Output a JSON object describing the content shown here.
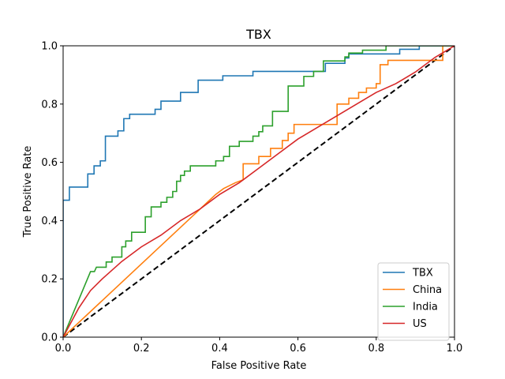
{
  "chart_data": {
    "type": "line",
    "title": "TBX",
    "xlabel": "False Positive Rate",
    "ylabel": "True Positive Rate",
    "xlim": [
      0.0,
      1.0
    ],
    "ylim": [
      0.0,
      1.0
    ],
    "xticks": [
      "0.0",
      "0.2",
      "0.4",
      "0.6",
      "0.8",
      "1.0"
    ],
    "yticks": [
      "0.0",
      "0.2",
      "0.4",
      "0.6",
      "0.8",
      "1.0"
    ],
    "grid": false,
    "legend_position": "lower-right",
    "diagonal": {
      "style": "dashed",
      "color": "#000000",
      "x": [
        0,
        1
      ],
      "y": [
        0,
        1
      ]
    },
    "series": [
      {
        "name": "TBX",
        "color": "#1f77b4",
        "points": [
          [
            0,
            0
          ],
          [
            0,
            0.47
          ],
          [
            0.016,
            0.47
          ],
          [
            0.016,
            0.515
          ],
          [
            0.063,
            0.515
          ],
          [
            0.063,
            0.56
          ],
          [
            0.079,
            0.56
          ],
          [
            0.079,
            0.588
          ],
          [
            0.095,
            0.588
          ],
          [
            0.095,
            0.605
          ],
          [
            0.108,
            0.605
          ],
          [
            0.108,
            0.69
          ],
          [
            0.14,
            0.69
          ],
          [
            0.14,
            0.708
          ],
          [
            0.155,
            0.708
          ],
          [
            0.155,
            0.75
          ],
          [
            0.17,
            0.75
          ],
          [
            0.17,
            0.765
          ],
          [
            0.235,
            0.765
          ],
          [
            0.235,
            0.782
          ],
          [
            0.25,
            0.782
          ],
          [
            0.25,
            0.81
          ],
          [
            0.3,
            0.81
          ],
          [
            0.3,
            0.84
          ],
          [
            0.345,
            0.84
          ],
          [
            0.345,
            0.882
          ],
          [
            0.408,
            0.882
          ],
          [
            0.408,
            0.897
          ],
          [
            0.485,
            0.897
          ],
          [
            0.485,
            0.912
          ],
          [
            0.67,
            0.912
          ],
          [
            0.67,
            0.94
          ],
          [
            0.72,
            0.94
          ],
          [
            0.72,
            0.958
          ],
          [
            0.73,
            0.958
          ],
          [
            0.73,
            0.972
          ],
          [
            0.86,
            0.972
          ],
          [
            0.86,
            0.988
          ],
          [
            0.91,
            0.988
          ],
          [
            0.91,
            1.0
          ],
          [
            1.0,
            1.0
          ]
        ]
      },
      {
        "name": "China",
        "color": "#ff7f0e",
        "points": [
          [
            0,
            0
          ],
          [
            0.39,
            0.49
          ],
          [
            0.41,
            0.51
          ],
          [
            0.44,
            0.53
          ],
          [
            0.46,
            0.54
          ],
          [
            0.46,
            0.595
          ],
          [
            0.5,
            0.595
          ],
          [
            0.5,
            0.62
          ],
          [
            0.53,
            0.62
          ],
          [
            0.53,
            0.648
          ],
          [
            0.56,
            0.648
          ],
          [
            0.56,
            0.675
          ],
          [
            0.575,
            0.675
          ],
          [
            0.575,
            0.7
          ],
          [
            0.59,
            0.7
          ],
          [
            0.59,
            0.73
          ],
          [
            0.7,
            0.73
          ],
          [
            0.7,
            0.8
          ],
          [
            0.73,
            0.8
          ],
          [
            0.73,
            0.82
          ],
          [
            0.755,
            0.82
          ],
          [
            0.755,
            0.84
          ],
          [
            0.775,
            0.84
          ],
          [
            0.775,
            0.855
          ],
          [
            0.8,
            0.855
          ],
          [
            0.8,
            0.87
          ],
          [
            0.81,
            0.87
          ],
          [
            0.81,
            0.935
          ],
          [
            0.83,
            0.935
          ],
          [
            0.83,
            0.95
          ],
          [
            0.97,
            0.95
          ],
          [
            0.97,
            1.0
          ],
          [
            1.0,
            1.0
          ]
        ]
      },
      {
        "name": "India",
        "color": "#2ca02c",
        "points": [
          [
            0,
            0
          ],
          [
            0.07,
            0.225
          ],
          [
            0.08,
            0.225
          ],
          [
            0.085,
            0.24
          ],
          [
            0.11,
            0.24
          ],
          [
            0.11,
            0.258
          ],
          [
            0.125,
            0.258
          ],
          [
            0.125,
            0.275
          ],
          [
            0.15,
            0.275
          ],
          [
            0.15,
            0.31
          ],
          [
            0.16,
            0.31
          ],
          [
            0.16,
            0.33
          ],
          [
            0.175,
            0.33
          ],
          [
            0.175,
            0.36
          ],
          [
            0.21,
            0.36
          ],
          [
            0.21,
            0.413
          ],
          [
            0.225,
            0.413
          ],
          [
            0.225,
            0.447
          ],
          [
            0.25,
            0.447
          ],
          [
            0.25,
            0.463
          ],
          [
            0.265,
            0.463
          ],
          [
            0.265,
            0.48
          ],
          [
            0.28,
            0.48
          ],
          [
            0.28,
            0.5
          ],
          [
            0.29,
            0.5
          ],
          [
            0.29,
            0.535
          ],
          [
            0.3,
            0.535
          ],
          [
            0.3,
            0.555
          ],
          [
            0.31,
            0.555
          ],
          [
            0.31,
            0.57
          ],
          [
            0.325,
            0.57
          ],
          [
            0.325,
            0.588
          ],
          [
            0.39,
            0.588
          ],
          [
            0.39,
            0.605
          ],
          [
            0.41,
            0.605
          ],
          [
            0.41,
            0.62
          ],
          [
            0.425,
            0.62
          ],
          [
            0.425,
            0.655
          ],
          [
            0.45,
            0.655
          ],
          [
            0.45,
            0.672
          ],
          [
            0.485,
            0.672
          ],
          [
            0.485,
            0.69
          ],
          [
            0.5,
            0.69
          ],
          [
            0.5,
            0.705
          ],
          [
            0.51,
            0.705
          ],
          [
            0.51,
            0.725
          ],
          [
            0.535,
            0.725
          ],
          [
            0.535,
            0.775
          ],
          [
            0.575,
            0.775
          ],
          [
            0.575,
            0.862
          ],
          [
            0.615,
            0.862
          ],
          [
            0.615,
            0.895
          ],
          [
            0.64,
            0.895
          ],
          [
            0.64,
            0.912
          ],
          [
            0.665,
            0.912
          ],
          [
            0.665,
            0.948
          ],
          [
            0.72,
            0.948
          ],
          [
            0.72,
            0.962
          ],
          [
            0.73,
            0.962
          ],
          [
            0.73,
            0.975
          ],
          [
            0.765,
            0.975
          ],
          [
            0.765,
            0.985
          ],
          [
            0.825,
            0.985
          ],
          [
            0.825,
            1.0
          ],
          [
            1.0,
            1.0
          ]
        ]
      },
      {
        "name": "US",
        "color": "#d62728",
        "points": [
          [
            0,
            0
          ],
          [
            0.02,
            0.05
          ],
          [
            0.04,
            0.1
          ],
          [
            0.07,
            0.16
          ],
          [
            0.1,
            0.2
          ],
          [
            0.15,
            0.26
          ],
          [
            0.2,
            0.31
          ],
          [
            0.25,
            0.35
          ],
          [
            0.3,
            0.4
          ],
          [
            0.35,
            0.44
          ],
          [
            0.4,
            0.49
          ],
          [
            0.45,
            0.53
          ],
          [
            0.5,
            0.58
          ],
          [
            0.55,
            0.63
          ],
          [
            0.6,
            0.68
          ],
          [
            0.65,
            0.72
          ],
          [
            0.7,
            0.76
          ],
          [
            0.75,
            0.8
          ],
          [
            0.8,
            0.84
          ],
          [
            0.85,
            0.87
          ],
          [
            0.9,
            0.91
          ],
          [
            0.95,
            0.96
          ],
          [
            1.0,
            1.0
          ]
        ]
      }
    ]
  }
}
